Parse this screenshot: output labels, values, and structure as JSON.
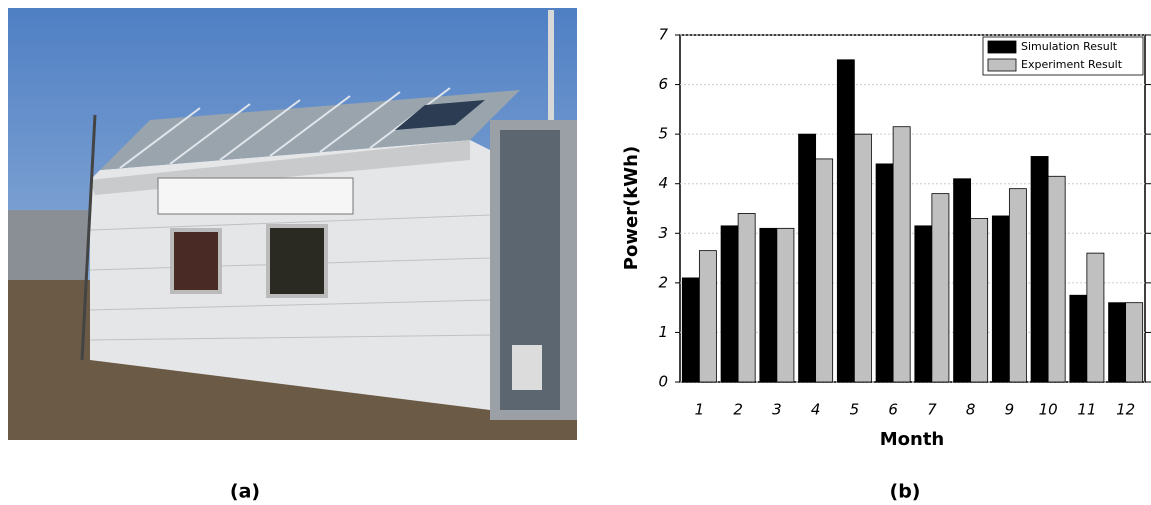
{
  "chart_data": {
    "type": "bar",
    "x_label": "Month",
    "y_label": "Power(kWh)",
    "categories": [
      "1",
      "2",
      "3",
      "4",
      "5",
      "6",
      "7",
      "8",
      "9",
      "10",
      "11",
      "12"
    ],
    "series": [
      {
        "name": "Simulation Result",
        "color": "#000000",
        "values": [
          2.1,
          3.15,
          3.1,
          5.0,
          6.5,
          4.4,
          3.15,
          4.1,
          3.35,
          4.55,
          1.75,
          1.6
        ]
      },
      {
        "name": "Experiment Result",
        "color": "#c0c0c0",
        "values": [
          2.65,
          3.4,
          3.1,
          4.5,
          5.0,
          5.15,
          3.8,
          3.3,
          3.9,
          4.15,
          2.6,
          1.6
        ]
      }
    ],
    "ylim": [
      0,
      7
    ],
    "yticks": [
      0,
      1,
      2,
      3,
      4,
      5,
      6,
      7
    ],
    "grid": true,
    "legend": "top-right"
  },
  "captions": [
    "(a)",
    "(b)"
  ]
}
